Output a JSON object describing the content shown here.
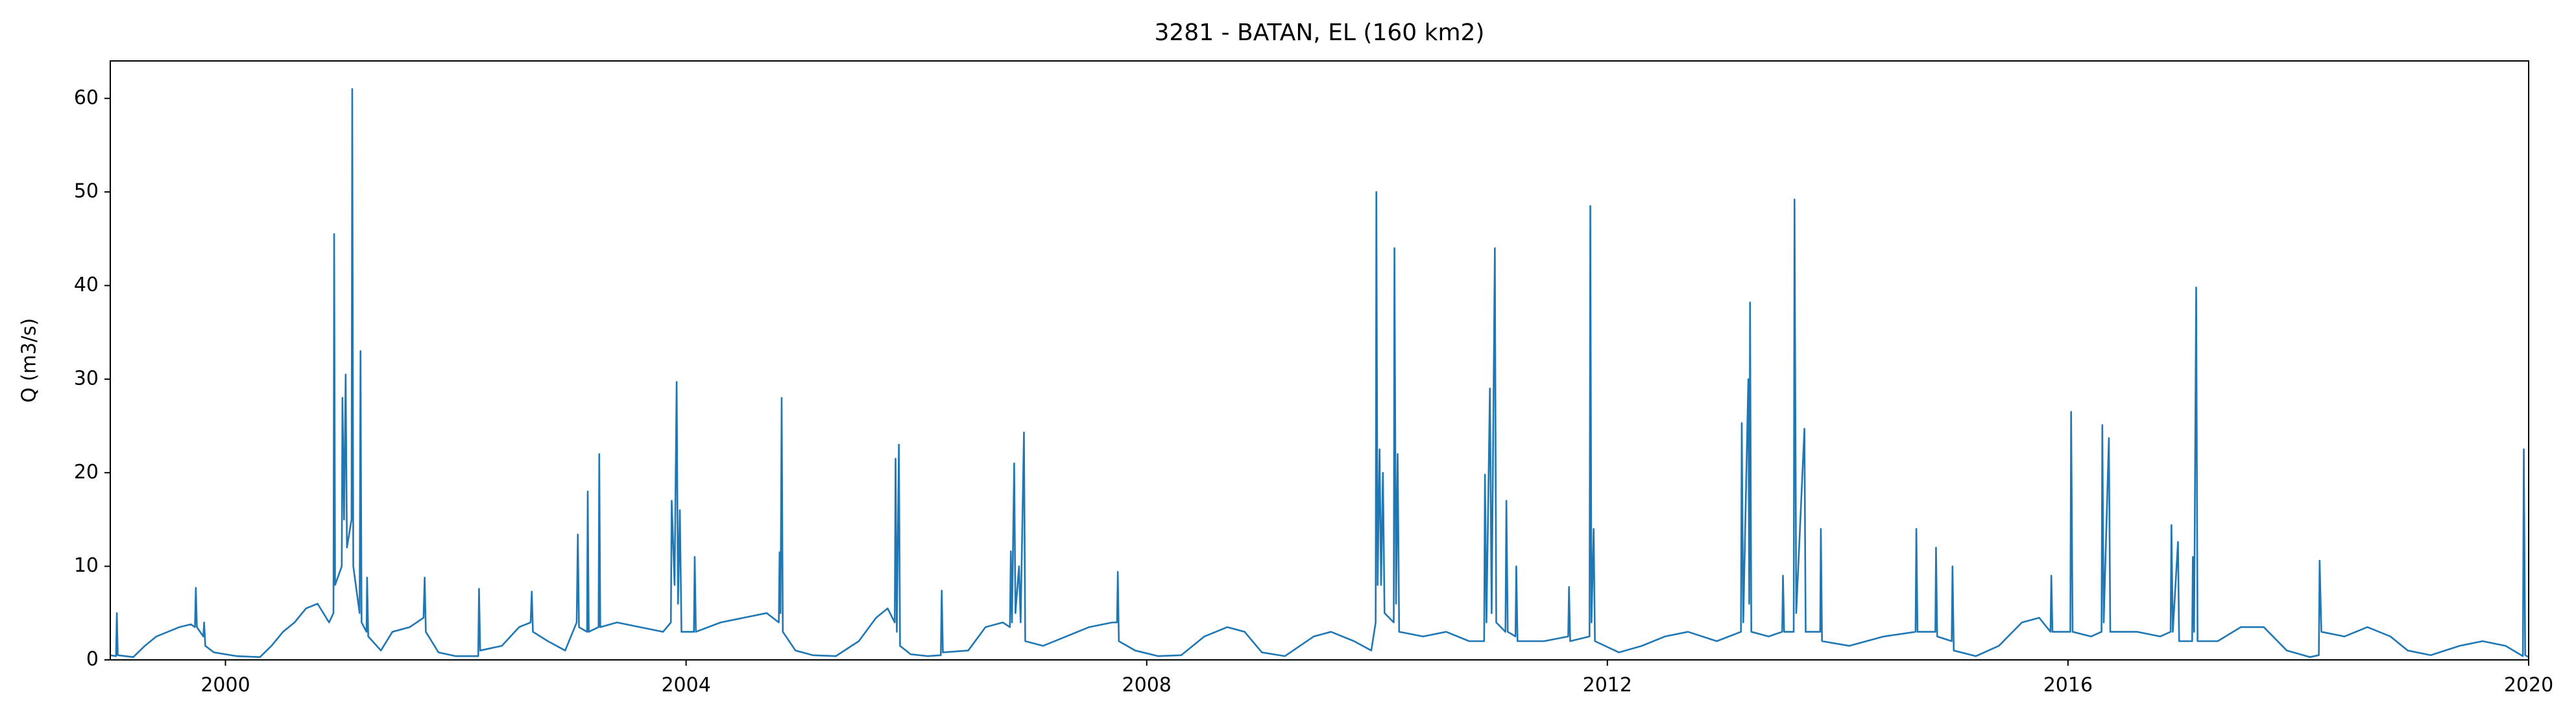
{
  "chart_data": {
    "type": "line",
    "title": "3281 - BATAN, EL (160 km2)",
    "ylabel": "Q (m3/s)",
    "xlim": [
      1999,
      2020
    ],
    "xticks": [
      2000,
      2004,
      2008,
      2012,
      2016,
      2020
    ],
    "ylim": [
      0,
      64
    ],
    "yticks": [
      0,
      10,
      20,
      30,
      40,
      50,
      60
    ],
    "grid": false,
    "series": [
      {
        "color": "#1f77b4",
        "x": [
          1999.0,
          1999.05,
          1999.057,
          1999.065,
          1999.2,
          1999.3,
          1999.4,
          1999.5,
          1999.6,
          1999.7,
          1999.735,
          1999.743,
          1999.752,
          1999.808,
          1999.815,
          1999.825,
          1999.9,
          2000.1,
          2000.3,
          2000.4,
          2000.5,
          2000.6,
          2000.7,
          2000.8,
          2000.9,
          2000.938,
          2000.944,
          2000.952,
          2001.01,
          2001.016,
          2001.03,
          2001.044,
          2001.055,
          2001.095,
          2001.101,
          2001.11,
          2001.165,
          2001.173,
          2001.182,
          2001.225,
          2001.23,
          2001.24,
          2001.35,
          2001.45,
          2001.6,
          2001.72,
          2001.73,
          2001.74,
          2001.85,
          2002.0,
          2002.195,
          2002.202,
          2002.212,
          2002.4,
          2002.55,
          2002.65,
          2002.66,
          2002.67,
          2002.8,
          2002.95,
          2003.05,
          2003.06,
          2003.07,
          2003.14,
          2003.146,
          2003.155,
          2003.24,
          2003.246,
          2003.255,
          2003.4,
          2003.6,
          2003.8,
          2003.868,
          2003.875,
          2003.9,
          2003.918,
          2003.93,
          2003.946,
          2003.96,
          2004.068,
          2004.075,
          2004.085,
          2004.3,
          2004.5,
          2004.7,
          2004.805,
          2004.812,
          2004.82,
          2004.83,
          2004.84,
          2004.95,
          2005.1,
          2005.3,
          2005.5,
          2005.65,
          2005.75,
          2005.812,
          2005.819,
          2005.83,
          2005.848,
          2005.858,
          2005.95,
          2006.1,
          2006.212,
          2006.22,
          2006.23,
          2006.45,
          2006.6,
          2006.75,
          2006.812,
          2006.82,
          2006.83,
          2006.849,
          2006.86,
          2006.891,
          2006.905,
          2006.934,
          2006.945,
          2007.1,
          2007.3,
          2007.5,
          2007.7,
          2007.742,
          2007.749,
          2007.758,
          2007.9,
          2008.1,
          2008.3,
          2008.5,
          2008.7,
          2008.85,
          2009.0,
          2009.2,
          2009.45,
          2009.6,
          2009.8,
          2009.95,
          2009.988,
          2009.994,
          2010.005,
          2010.022,
          2010.035,
          2010.051,
          2010.065,
          2010.145,
          2010.151,
          2010.165,
          2010.179,
          2010.192,
          2010.4,
          2010.6,
          2010.8,
          2010.93,
          2010.937,
          2010.95,
          2010.98,
          2010.995,
          2011.023,
          2011.035,
          2011.115,
          2011.123,
          2011.135,
          2011.202,
          2011.209,
          2011.22,
          2011.45,
          2011.66,
          2011.667,
          2011.677,
          2011.845,
          2011.852,
          2011.862,
          2011.881,
          2011.892,
          2012.1,
          2012.3,
          2012.5,
          2012.7,
          2012.95,
          2013.16,
          2013.167,
          2013.18,
          2013.224,
          2013.232,
          2013.239,
          2013.25,
          2013.4,
          2013.518,
          2013.525,
          2013.535,
          2013.618,
          2013.625,
          2013.64,
          2013.711,
          2013.722,
          2013.848,
          2013.854,
          2013.864,
          2014.1,
          2014.4,
          2014.676,
          2014.683,
          2014.693,
          2014.848,
          2014.854,
          2014.864,
          2014.99,
          2014.997,
          2015.008,
          2015.2,
          2015.4,
          2015.6,
          2015.75,
          2015.848,
          2015.855,
          2015.865,
          2016.02,
          2016.027,
          2016.04,
          2016.2,
          2016.291,
          2016.298,
          2016.31,
          2016.355,
          2016.367,
          2016.6,
          2016.8,
          2016.891,
          2016.898,
          2016.91,
          2016.955,
          2016.965,
          2017.078,
          2017.084,
          2017.095,
          2017.113,
          2017.125,
          2017.3,
          2017.5,
          2017.7,
          2017.9,
          2018.1,
          2018.178,
          2018.185,
          2018.2,
          2018.4,
          2018.6,
          2018.8,
          2018.95,
          2019.15,
          2019.4,
          2019.6,
          2019.8,
          2019.95,
          2019.958,
          2019.97,
          2020.0
        ],
        "values": [
          0.5,
          0.4,
          5.0,
          0.5,
          0.3,
          1.5,
          2.5,
          3.0,
          3.5,
          3.8,
          3.5,
          7.7,
          3.5,
          2.5,
          4.0,
          1.5,
          0.8,
          0.4,
          0.3,
          1.5,
          3.0,
          4.0,
          5.5,
          6.0,
          4.0,
          5.0,
          45.5,
          8.0,
          10.0,
          28.0,
          15.0,
          30.5,
          12.0,
          15.0,
          61.0,
          10.0,
          5.0,
          33.0,
          4.0,
          3.0,
          8.8,
          2.5,
          1.0,
          3.0,
          3.5,
          4.5,
          8.8,
          3.0,
          0.8,
          0.4,
          0.4,
          7.6,
          1.0,
          1.5,
          3.5,
          4.0,
          7.3,
          3.0,
          2.0,
          1.0,
          4.0,
          13.4,
          3.5,
          3.0,
          18.0,
          3.0,
          3.5,
          22.0,
          3.5,
          4.0,
          3.5,
          3.0,
          4.0,
          17.0,
          8.0,
          29.7,
          6.0,
          16.0,
          3.0,
          3.0,
          11.0,
          3.0,
          4.0,
          4.5,
          5.0,
          4.0,
          11.5,
          5.0,
          28.0,
          3.0,
          1.0,
          0.5,
          0.4,
          2.0,
          4.5,
          5.5,
          4.0,
          21.5,
          3.0,
          23.0,
          1.5,
          0.6,
          0.4,
          0.5,
          7.4,
          0.8,
          1.0,
          3.5,
          4.0,
          3.5,
          11.6,
          4.0,
          21.0,
          5.0,
          10.0,
          4.0,
          24.3,
          2.0,
          1.5,
          2.5,
          3.5,
          4.0,
          4.0,
          9.4,
          2.0,
          1.0,
          0.4,
          0.5,
          2.5,
          3.5,
          3.0,
          0.8,
          0.4,
          2.5,
          3.0,
          2.0,
          1.0,
          4.0,
          50.0,
          8.0,
          22.5,
          8.0,
          20.0,
          5.0,
          4.0,
          44.0,
          6.0,
          22.0,
          3.0,
          2.5,
          3.0,
          2.0,
          2.0,
          19.8,
          4.0,
          29.0,
          5.0,
          44.0,
          4.0,
          3.0,
          17.0,
          3.0,
          2.5,
          10.0,
          2.0,
          2.0,
          2.5,
          7.8,
          2.0,
          2.5,
          48.5,
          4.0,
          14.0,
          2.0,
          0.8,
          1.5,
          2.5,
          3.0,
          2.0,
          3.0,
          25.3,
          4.0,
          30.0,
          6.0,
          38.2,
          3.0,
          2.5,
          3.0,
          9.0,
          3.0,
          3.0,
          49.2,
          5.0,
          24.7,
          3.0,
          3.0,
          14.0,
          2.0,
          1.5,
          2.5,
          3.0,
          14.0,
          3.0,
          3.0,
          12.0,
          2.5,
          2.0,
          10.0,
          1.0,
          0.4,
          1.5,
          4.0,
          4.5,
          3.0,
          9.0,
          3.0,
          3.0,
          26.5,
          3.0,
          2.5,
          3.0,
          25.1,
          4.0,
          23.7,
          3.0,
          3.0,
          2.5,
          3.0,
          14.4,
          3.0,
          12.6,
          2.0,
          2.0,
          11.0,
          3.0,
          39.8,
          2.0,
          2.0,
          3.5,
          3.5,
          1.0,
          0.3,
          0.5,
          10.6,
          3.0,
          2.5,
          3.5,
          2.5,
          1.0,
          0.5,
          1.5,
          2.0,
          1.5,
          0.4,
          22.5,
          0.5,
          0.3
        ]
      }
    ]
  }
}
